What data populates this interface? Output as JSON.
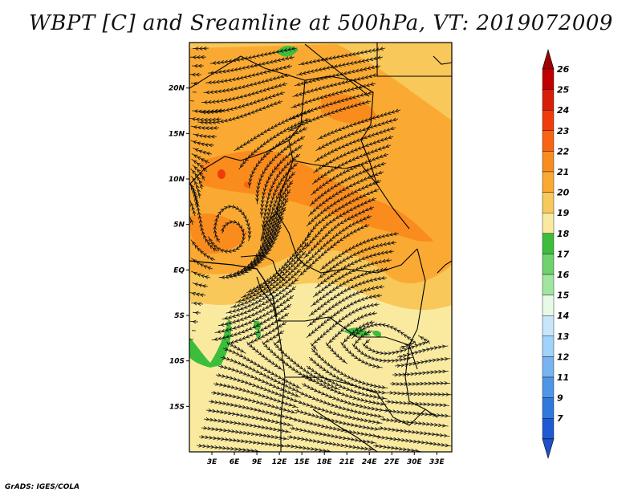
{
  "title": "WBPT [C] and Sreamline at 500hPa, VT: 2019072009",
  "credit": "GrADS: IGES/COLA",
  "map": {
    "lat_labels": [
      "20N",
      "15N",
      "10N",
      "5N",
      "EQ",
      "5S",
      "10S",
      "15S"
    ],
    "lat_values": [
      20,
      15,
      10,
      5,
      0,
      -5,
      -10,
      -15
    ],
    "lon_labels": [
      "3E",
      "6E",
      "9E",
      "12E",
      "15E",
      "18E",
      "21E",
      "24E",
      "27E",
      "30E",
      "33E"
    ],
    "lon_values": [
      3,
      6,
      9,
      12,
      15,
      18,
      21,
      24,
      27,
      30,
      33
    ],
    "lon_range": [
      0,
      35
    ],
    "lat_range": [
      -20,
      25
    ]
  },
  "colorbar": {
    "labels": [
      "26",
      "25",
      "24",
      "23",
      "22",
      "21",
      "20",
      "19",
      "18",
      "17",
      "16",
      "15",
      "14",
      "13",
      "12",
      "11",
      "9",
      "7"
    ],
    "colors": [
      "#c00000",
      "#d81e06",
      "#f03c0c",
      "#f86414",
      "#fa8c1e",
      "#faaa32",
      "#f8c85a",
      "#faeaa0",
      "#3cbe3c",
      "#6ed26e",
      "#a0e6a0",
      "#e6fae6",
      "#c8e6fa",
      "#a0d2fa",
      "#78b4f0",
      "#5096e6",
      "#3078dc",
      "#1e5ad2"
    ],
    "top_color": "#a00000",
    "bottom_color": "#1e50c8"
  }
}
